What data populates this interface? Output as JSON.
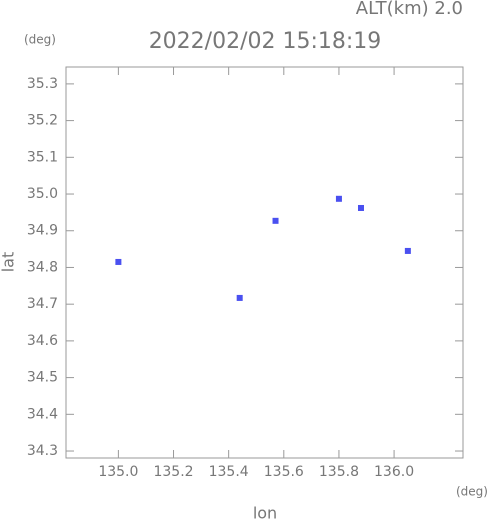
{
  "chart_data": {
    "type": "scatter",
    "title": "2022/02/02 15:18:19",
    "subtitle": "ALT(km) 2.0",
    "x_label": "lon",
    "y_label": "lat",
    "x_unit": "(deg)",
    "y_unit": "(deg)",
    "series": [
      {
        "color": "#4a50f0",
        "x": [
          135.0,
          135.44,
          135.57,
          135.8,
          135.88,
          136.05
        ],
        "values": [
          34.815,
          34.717,
          34.927,
          34.987,
          34.962,
          34.845
        ]
      }
    ],
    "xlim": [
      134.81,
      136.25
    ],
    "ylim": [
      34.281,
      35.346
    ],
    "xticks": [
      {
        "value": 135.0,
        "label": "135.0"
      },
      135.2,
      135.4,
      135.6,
      135.8,
      {
        "value": 136.0,
        "label": "136.0"
      }
    ],
    "yticks": [
      34.3,
      34.4,
      34.5,
      34.6,
      34.7,
      34.8,
      34.9,
      {
        "value": 35.0,
        "label": "35.0"
      },
      35.1,
      35.2,
      35.3
    ]
  }
}
